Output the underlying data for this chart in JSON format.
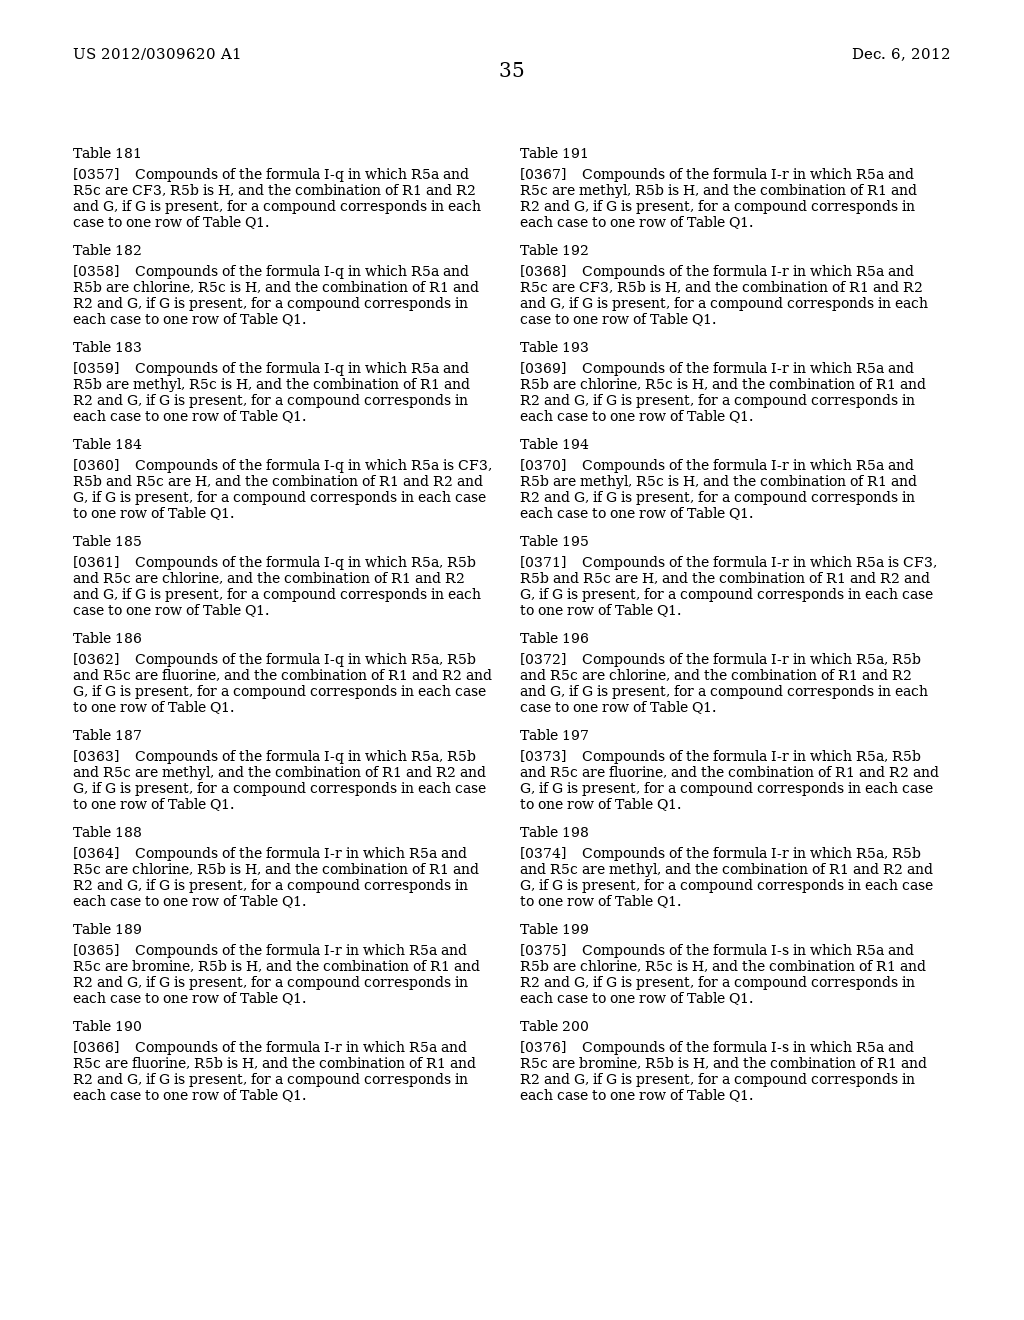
{
  "background_color": "#ffffff",
  "header_left": "US 2012/0309620 A1",
  "header_right": "Dec. 6, 2012",
  "page_number": "35",
  "left_column": [
    {
      "table": "Table 181",
      "ref": "[0357]",
      "plain_text": "Compounds of the formula I-q in which R5a and R5c are CF3, R5b is H, and the combination of R1 and R2 and G, if G is present, for a compound corresponds in each case to one row of Table Q1."
    },
    {
      "table": "Table 182",
      "ref": "[0358]",
      "plain_text": "Compounds of the formula I-q in which R5a and R5b are chlorine, R5c is H, and the combination of R1 and R2 and G, if G is present, for a compound corresponds in each case to one row of Table Q1."
    },
    {
      "table": "Table 183",
      "ref": "[0359]",
      "plain_text": "Compounds of the formula I-q in which R5a and R5b are methyl, R5c is H, and the combination of R1 and R2 and G, if G is present, for a compound corresponds in each case to one row of Table Q1."
    },
    {
      "table": "Table 184",
      "ref": "[0360]",
      "plain_text": "Compounds of the formula I-q in which R5a is CF3, R5b and R5c are H, and the combination of R1 and R2 and G, if G is present, for a compound corresponds in each case to one row of Table Q1."
    },
    {
      "table": "Table 185",
      "ref": "[0361]",
      "plain_text": "Compounds of the formula I-q in which R5a, R5b and R5c are chlorine, and the combination of R1 and R2 and G, if G is present, for a compound corresponds in each case to one row of Table Q1."
    },
    {
      "table": "Table 186",
      "ref": "[0362]",
      "plain_text": "Compounds of the formula I-q in which R5a, R5b and R5c are fluorine, and the combination of R1 and R2 and G, if G is present, for a compound corresponds in each case to one row of Table Q1."
    },
    {
      "table": "Table 187",
      "ref": "[0363]",
      "plain_text": "Compounds of the formula I-q in which R5a, R5b and R5c are methyl, and the combination of R1 and R2 and G, if G is present, for a compound corresponds in each case to one row of Table Q1."
    },
    {
      "table": "Table 188",
      "ref": "[0364]",
      "plain_text": "Compounds of the formula I-r in which R5a and R5c are chlorine, R5b is H, and the combination of R1 and R2 and G, if G is present, for a compound corresponds in each case to one row of Table Q1."
    },
    {
      "table": "Table 189",
      "ref": "[0365]",
      "plain_text": "Compounds of the formula I-r in which R5a and R5c are bromine, R5b is H, and the combination of R1 and R2 and G, if G is present, for a compound corresponds in each case to one row of Table Q1."
    },
    {
      "table": "Table 190",
      "ref": "[0366]",
      "plain_text": "Compounds of the formula I-r in which R5a and R5c are fluorine, R5b is H, and the combination of R1 and R2 and G, if G is present, for a compound corresponds in each case to one row of Table Q1."
    }
  ],
  "right_column": [
    {
      "table": "Table 191",
      "ref": "[0367]",
      "plain_text": "Compounds of the formula I-r in which R5a and R5c are methyl, R5b is H, and the combination of R1 and R2 and G, if G is present, for a compound corresponds in each case to one row of Table Q1."
    },
    {
      "table": "Table 192",
      "ref": "[0368]",
      "plain_text": "Compounds of the formula I-r in which R5a and R5c are CF3, R5b is H, and the combination of R1 and R2 and G, if G is present, for a compound corresponds in each case to one row of Table Q1."
    },
    {
      "table": "Table 193",
      "ref": "[0369]",
      "plain_text": "Compounds of the formula I-r in which R5a and R5b are chlorine, R5c is H, and the combination of R1 and R2 and G, if G is present, for a compound corresponds in each case to one row of Table Q1."
    },
    {
      "table": "Table 194",
      "ref": "[0370]",
      "plain_text": "Compounds of the formula I-r in which R5a and R5b are methyl, R5c is H, and the combination of R1 and R2 and G, if G is present, for a compound corresponds in each case to one row of Table Q1."
    },
    {
      "table": "Table 195",
      "ref": "[0371]",
      "plain_text": "Compounds of the formula I-r in which R5a is CF3, R5b and R5c are H, and the combination of R1 and R2 and G, if G is present, for a compound corresponds in each case to one row of Table Q1."
    },
    {
      "table": "Table 196",
      "ref": "[0372]",
      "plain_text": "Compounds of the formula I-r in which R5a, R5b and R5c are chlorine, and the combination of R1 and R2 and G, if G is present, for a compound corresponds in each case to one row of Table Q1."
    },
    {
      "table": "Table 197",
      "ref": "[0373]",
      "plain_text": "Compounds of the formula I-r in which R5a, R5b and R5c are fluorine, and the combination of R1 and R2 and G, if G is present, for a compound corresponds in each case to one row of Table Q1."
    },
    {
      "table": "Table 198",
      "ref": "[0374]",
      "plain_text": "Compounds of the formula I-r in which R5a, R5b and R5c are methyl, and the combination of R1 and R2 and G, if G is present, for a compound corresponds in each case to one row of Table Q1."
    },
    {
      "table": "Table 199",
      "ref": "[0375]",
      "plain_text": "Compounds of the formula I-s in which R5a and R5b are chlorine, R5c is H, and the combination of R1 and R2 and G, if G is present, for a compound corresponds in each case to one row of Table Q1."
    },
    {
      "table": "Table 200",
      "ref": "[0376]",
      "plain_text": "Compounds of the formula I-s in which R5a and R5c are bromine, R5b is H, and the combination of R1 and R2 and G, if G is present, for a compound corresponds in each case to one row of Table Q1."
    }
  ]
}
